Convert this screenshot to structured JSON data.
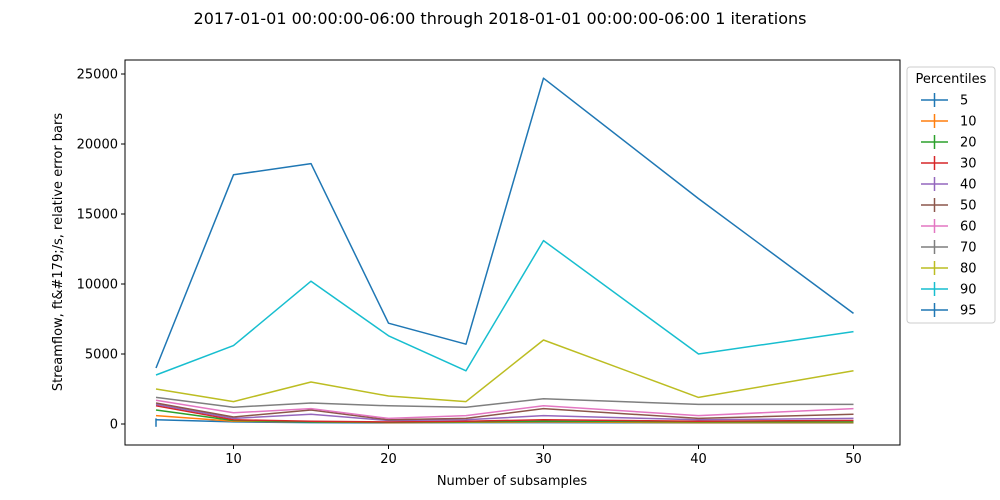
{
  "chart_data": {
    "type": "line",
    "title": "2017-01-01 00:00:00-06:00 through 2018-01-01 00:00:00-06:00 1 iterations",
    "xlabel": "Number of subsamples",
    "ylabel": "Streamflow, ft&#179;/s, relative error bars",
    "xlim": [
      3,
      53
    ],
    "ylim": [
      -1500,
      26000
    ],
    "xticks": [
      10,
      20,
      30,
      40,
      50
    ],
    "yticks": [
      0,
      5000,
      10000,
      15000,
      20000,
      25000
    ],
    "x": [
      5,
      10,
      15,
      20,
      25,
      30,
      40,
      50
    ],
    "grid": false,
    "legend": {
      "title": "Percentiles",
      "placement": "outside-right"
    },
    "series": [
      {
        "name": "5",
        "color": "#1f77b4",
        "values": [
          300,
          150,
          100,
          80,
          100,
          100,
          80,
          80
        ]
      },
      {
        "name": "10",
        "color": "#ff7f0e",
        "values": [
          600,
          200,
          150,
          100,
          120,
          150,
          100,
          100
        ]
      },
      {
        "name": "20",
        "color": "#2ca02c",
        "values": [
          1000,
          250,
          150,
          120,
          150,
          200,
          150,
          150
        ]
      },
      {
        "name": "30",
        "color": "#d62728",
        "values": [
          1300,
          300,
          200,
          150,
          200,
          300,
          200,
          250
        ]
      },
      {
        "name": "40",
        "color": "#9467bd",
        "values": [
          1400,
          400,
          700,
          250,
          300,
          600,
          300,
          400
        ]
      },
      {
        "name": "50",
        "color": "#8c564b",
        "values": [
          1500,
          500,
          1000,
          300,
          400,
          1100,
          400,
          700
        ]
      },
      {
        "name": "60",
        "color": "#e377c2",
        "values": [
          1700,
          800,
          1100,
          400,
          600,
          1300,
          600,
          1100
        ]
      },
      {
        "name": "70",
        "color": "#7f7f7f",
        "values": [
          1900,
          1200,
          1500,
          1300,
          1200,
          1800,
          1400,
          1400
        ]
      },
      {
        "name": "80",
        "color": "#bcbd22",
        "values": [
          2500,
          1600,
          3000,
          2000,
          1600,
          6000,
          1900,
          3800
        ]
      },
      {
        "name": "90",
        "color": "#17becf",
        "values": [
          3500,
          5600,
          10200,
          6300,
          3800,
          13100,
          5000,
          6600
        ]
      },
      {
        "name": "95",
        "color": "#1f77b4",
        "values": [
          4000,
          17800,
          18600,
          7200,
          5700,
          24700,
          16100,
          7900
        ]
      }
    ],
    "error_bar": {
      "x": 5,
      "low": -200,
      "high": 400,
      "series": "5"
    }
  }
}
